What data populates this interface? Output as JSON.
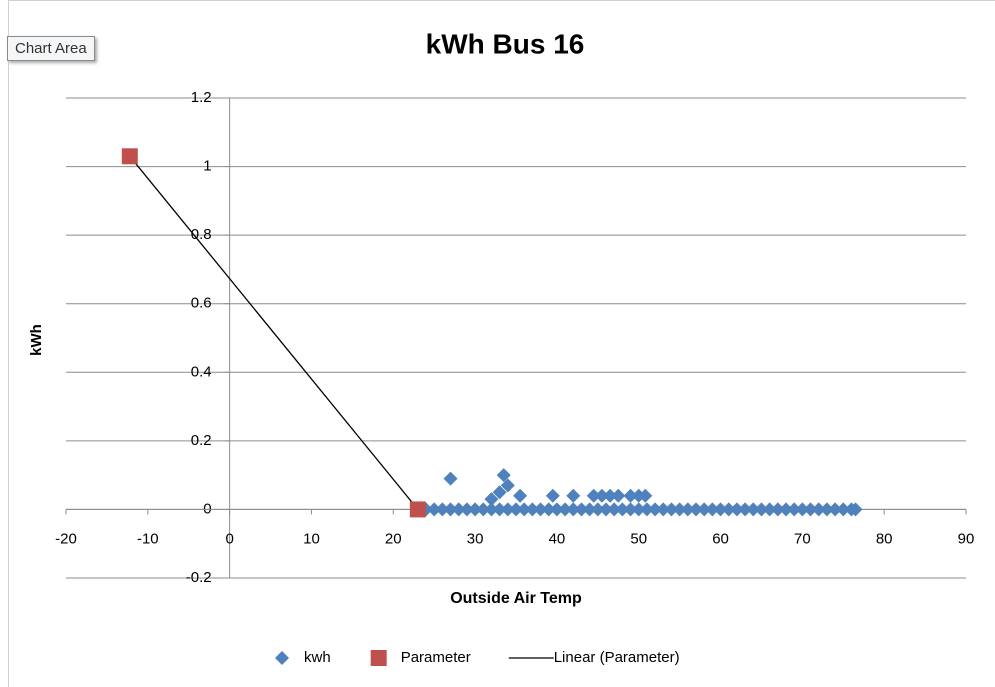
{
  "ui": {
    "tooltip": "Chart Area"
  },
  "chart_data": {
    "type": "scatter",
    "title": "kWh Bus 16",
    "x_label": "Outside Air Temp",
    "y_label": "kWh",
    "xlim": [
      -20,
      90
    ],
    "xticks": [
      -20,
      -10,
      0,
      10,
      20,
      30,
      40,
      50,
      60,
      70,
      80,
      90
    ],
    "ylim": [
      -0.2,
      1.2
    ],
    "yticks": [
      -0.2,
      0,
      0.2,
      0.4,
      0.6,
      0.8,
      1,
      1.2
    ],
    "grid": true,
    "legend": "bottom",
    "series": [
      {
        "name": "kwh",
        "color": "#4f81bd",
        "marker": "diamond",
        "x": [
          24,
          25,
          26,
          27,
          28,
          29,
          30,
          31,
          32,
          33,
          34,
          35,
          36,
          37,
          38,
          39,
          40,
          41,
          42,
          43,
          44,
          45,
          46,
          47,
          48,
          49,
          50,
          51,
          52,
          53,
          54,
          55,
          56,
          57,
          58,
          59,
          60,
          61,
          62,
          63,
          64,
          65,
          66,
          67,
          68,
          69,
          70,
          71,
          72,
          73,
          74,
          75,
          76,
          76.5,
          27,
          32,
          33,
          33.5,
          34,
          35.5,
          39.5,
          42,
          44.5,
          45.5,
          46.5,
          47.5,
          49,
          50,
          50.8
        ],
        "values": [
          0,
          0,
          0,
          0,
          0,
          0,
          0,
          0,
          0,
          0,
          0,
          0,
          0,
          0,
          0,
          0,
          0,
          0,
          0,
          0,
          0,
          0,
          0,
          0,
          0,
          0,
          0,
          0,
          0,
          0,
          0,
          0,
          0,
          0,
          0,
          0,
          0,
          0,
          0,
          0,
          0,
          0,
          0,
          0,
          0,
          0,
          0,
          0,
          0,
          0,
          0,
          0,
          0,
          0,
          0.09,
          0.03,
          0.05,
          0.1,
          0.07,
          0.04,
          0.04,
          0.04,
          0.04,
          0.04,
          0.04,
          0.04,
          0.04,
          0.04,
          0.04
        ]
      },
      {
        "name": "Parameter",
        "color": "#c0504d",
        "marker": "square",
        "x": [
          -12.2,
          23
        ],
        "values": [
          1.03,
          0
        ],
        "trendline": {
          "name": "Linear (Parameter)",
          "color": "#000000"
        }
      }
    ]
  }
}
